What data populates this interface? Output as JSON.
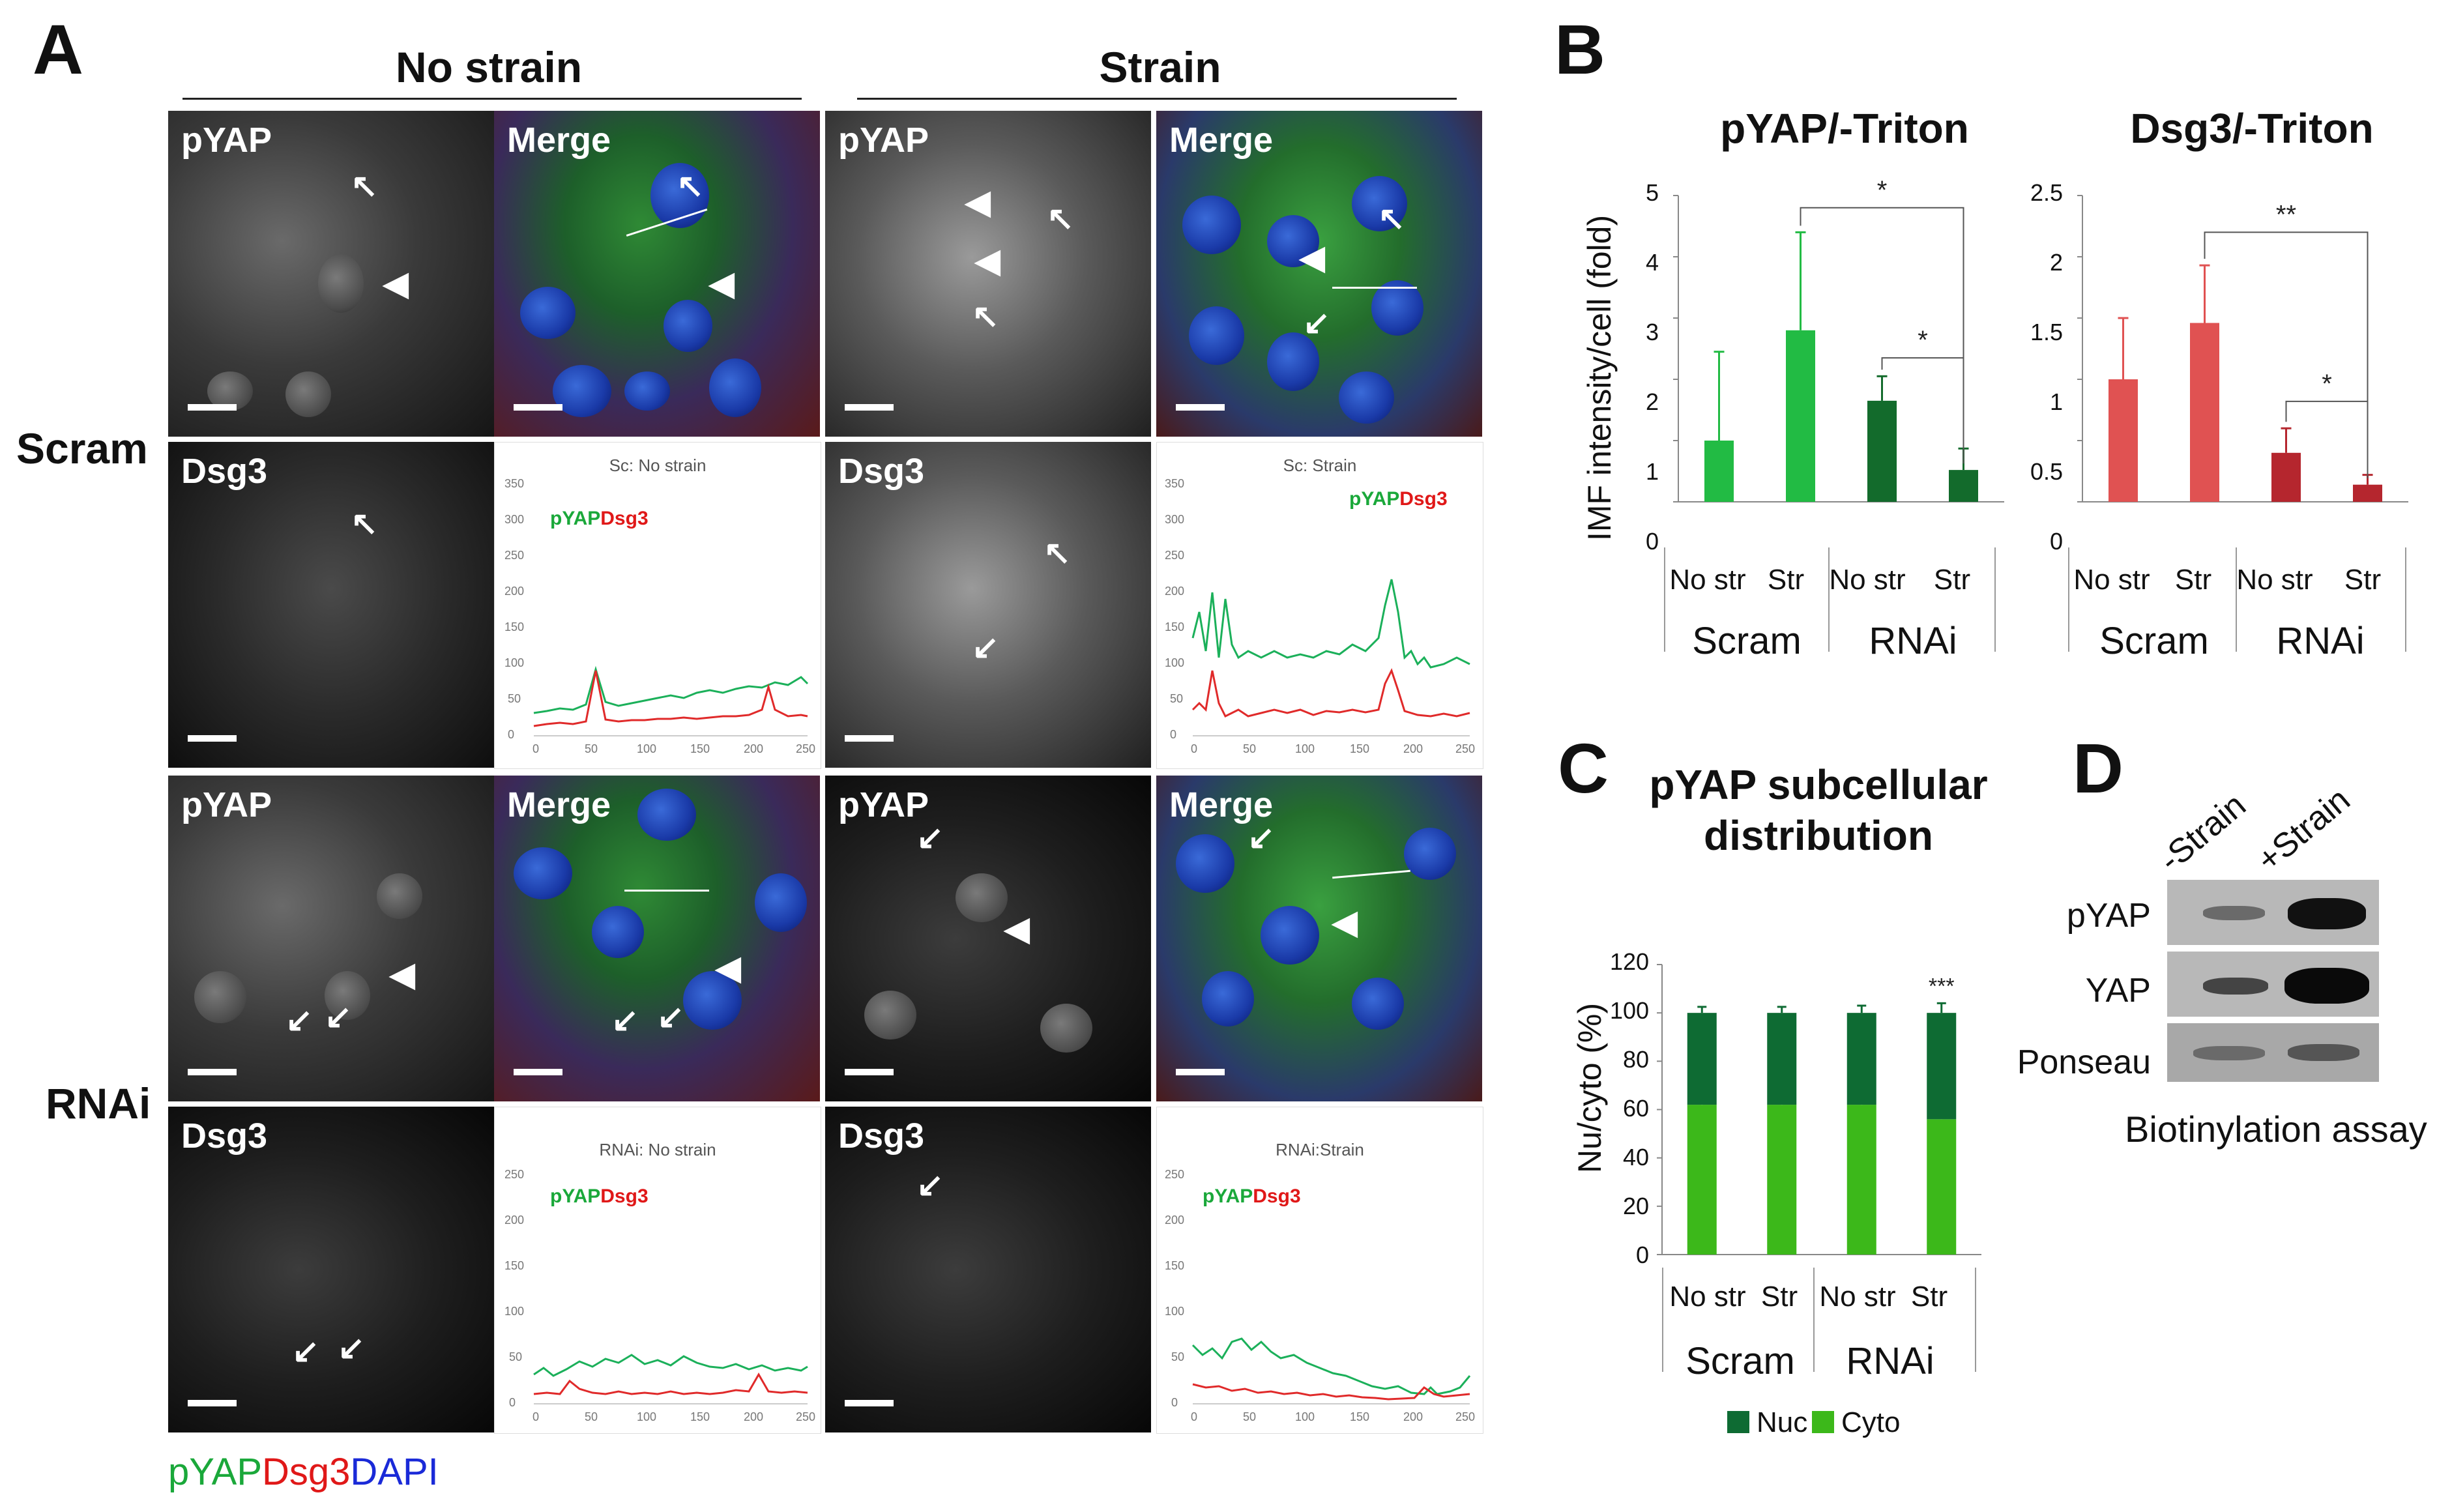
{
  "panel_letters": {
    "a": "A",
    "b": "B",
    "c": "C",
    "d": "D"
  },
  "panel_a": {
    "col_headers": [
      "No strain",
      "Strain"
    ],
    "row_labels": [
      "Scram",
      "RNAi"
    ],
    "tile_labels": {
      "pyap": "pYAP",
      "merge": "Merge",
      "dsg3": "Dsg3"
    },
    "plots": {
      "scram_nostrain_title": "Sc: No strain",
      "scram_strain_title": "Sc: Strain",
      "rnai_nostrain_title": "RNAi: No strain",
      "rnai_strain_title": "RNAi:Strain",
      "legend_green": "pYAP",
      "legend_red": "Dsg3",
      "y_ticks": [
        "0",
        "50",
        "100",
        "150",
        "200",
        "250",
        "300",
        "350"
      ],
      "y_ticks_rnai": [
        "0",
        "50",
        "100",
        "150",
        "200",
        "250"
      ],
      "x_ticks": [
        "0",
        "50",
        "100",
        "150",
        "200",
        "250"
      ]
    },
    "caption": {
      "green": "pYAP",
      "red": "Dsg3",
      "blue": "DAPI"
    },
    "colors": {
      "green": "#1aa83a",
      "red": "#e01818",
      "blue": "#1a2ad8"
    }
  },
  "chart_data": [
    {
      "type": "bar",
      "title": "pYAP/-Triton",
      "ylabel": "IMF intensity/cell (fold)",
      "categories": [
        "No str",
        "Str",
        "No str",
        "Str"
      ],
      "groups": [
        "Scram",
        "RNAi"
      ],
      "values": [
        1.0,
        2.8,
        1.65,
        0.52
      ],
      "errors": [
        1.45,
        1.6,
        0.4,
        0.35
      ],
      "colors": [
        "#22bb44",
        "#22bb44",
        "#136b2c",
        "#136b2c"
      ],
      "ylim": [
        0,
        5
      ],
      "yticks": [
        "0",
        "1",
        "2",
        "3",
        "4",
        "5"
      ],
      "significance": [
        "*",
        "*"
      ]
    },
    {
      "type": "bar",
      "title": "Dsg3/-Triton",
      "categories": [
        "No str",
        "Str",
        "No str",
        "Str"
      ],
      "groups": [
        "Scram",
        "RNAi"
      ],
      "values": [
        1.0,
        1.46,
        0.4,
        0.14
      ],
      "errors": [
        0.5,
        0.47,
        0.2,
        0.08
      ],
      "colors": [
        "#e05252",
        "#e05252",
        "#b5262e",
        "#b5262e"
      ],
      "ylim": [
        0,
        2.5
      ],
      "yticks": [
        "0",
        "0.5",
        "1",
        "1.5",
        "2",
        "2.5"
      ],
      "significance": [
        "**",
        "*"
      ]
    },
    {
      "type": "bar",
      "stacked": true,
      "title": "pYAP subcellular distribution",
      "ylabel": "Nu/cyto (%)",
      "categories": [
        "No str",
        "Str",
        "No str",
        "Str"
      ],
      "groups": [
        "Scram",
        "RNAi"
      ],
      "series": [
        {
          "name": "Cyto",
          "values": [
            62,
            62,
            62,
            56
          ],
          "color": "#3cb81a"
        },
        {
          "name": "Nuc",
          "values": [
            38,
            38,
            38,
            44
          ],
          "color": "#0e6b33"
        }
      ],
      "ylim": [
        0,
        120
      ],
      "yticks": [
        "0",
        "20",
        "40",
        "60",
        "80",
        "100",
        "120"
      ],
      "significance": [
        "***"
      ]
    }
  ],
  "panel_d": {
    "lanes": [
      "-Strain",
      "+Strain"
    ],
    "rows": [
      "pYAP",
      "YAP",
      "Ponseau"
    ],
    "caption": "Biotinylation assay"
  }
}
